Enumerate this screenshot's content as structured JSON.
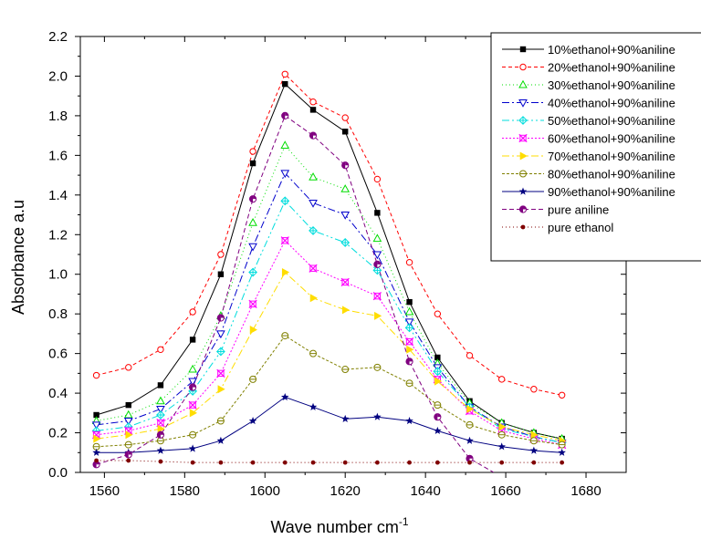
{
  "chart_data": {
    "type": "line",
    "title": "",
    "xlabel": "Wave number cm",
    "xlabel_sup": "-1",
    "ylabel": "Absorbance a.u",
    "xlim": [
      1554,
      1690
    ],
    "ylim": [
      0,
      2.2
    ],
    "xticks": [
      1560,
      1580,
      1600,
      1620,
      1640,
      1660,
      1680
    ],
    "xtick_labels": [
      "1560",
      "1580",
      "1600",
      "1620",
      "1640",
      "1660",
      "1680"
    ],
    "yticks": [
      0,
      0.2,
      0.4,
      0.6,
      0.8,
      1.0,
      1.2,
      1.4,
      1.6,
      1.8,
      2.0,
      2.2
    ],
    "ytick_labels": [
      "0.0",
      "0.2",
      "0.4",
      "0.6",
      "0.8",
      "1.0",
      "1.2",
      "1.4",
      "1.6",
      "1.8",
      "2.0",
      "2.2"
    ],
    "grid": false,
    "legend_position": "top-right",
    "x": [
      1558,
      1566,
      1574,
      1582,
      1589,
      1597,
      1605,
      1612,
      1620,
      1628,
      1636,
      1643,
      1651,
      1659,
      1667,
      1674
    ],
    "series": [
      {
        "name": "10%ethanol+90%aniline",
        "color": "#000000",
        "dash": "none",
        "marker": "square-filled",
        "values": [
          0.29,
          0.34,
          0.44,
          0.67,
          1.0,
          1.56,
          1.96,
          1.83,
          1.72,
          1.31,
          0.86,
          0.58,
          0.36,
          0.25,
          0.2,
          0.17
        ]
      },
      {
        "name": "20%ethanol+90%aniline",
        "color": "#ff0000",
        "dash": "4,3",
        "marker": "circle-open",
        "values": [
          0.49,
          0.53,
          0.62,
          0.81,
          1.1,
          1.62,
          2.01,
          1.87,
          1.79,
          1.48,
          1.06,
          0.8,
          0.59,
          0.47,
          0.42,
          0.39
        ]
      },
      {
        "name": "30%ethanol+90%aniline",
        "color": "#00dd00",
        "dash": "1,3",
        "marker": "triangle-up-open",
        "values": [
          0.26,
          0.29,
          0.36,
          0.52,
          0.79,
          1.26,
          1.65,
          1.49,
          1.43,
          1.18,
          0.81,
          0.55,
          0.35,
          0.25,
          0.2,
          0.17
        ]
      },
      {
        "name": "40%ethanol+90%aniline",
        "color": "#0000cc",
        "dash": "8,3,2,3",
        "marker": "triangle-down-open",
        "values": [
          0.24,
          0.26,
          0.32,
          0.46,
          0.7,
          1.14,
          1.51,
          1.36,
          1.3,
          1.1,
          0.76,
          0.53,
          0.33,
          0.23,
          0.18,
          0.15
        ]
      },
      {
        "name": "50%ethanol+90%aniline",
        "color": "#00dddd",
        "dash": "8,3,2,3,2,3",
        "marker": "diamond-cross",
        "values": [
          0.21,
          0.23,
          0.29,
          0.41,
          0.61,
          1.01,
          1.37,
          1.22,
          1.16,
          1.02,
          0.73,
          0.51,
          0.33,
          0.22,
          0.18,
          0.15
        ]
      },
      {
        "name": "60%ethanol+90%aniline",
        "color": "#ff00ff",
        "dash": "2,2",
        "marker": "x-box",
        "values": [
          0.19,
          0.21,
          0.25,
          0.34,
          0.5,
          0.85,
          1.17,
          1.03,
          0.96,
          0.89,
          0.66,
          0.47,
          0.31,
          0.21,
          0.17,
          0.14
        ]
      },
      {
        "name": "70%ethanol+90%aniline",
        "color": "#ffdd00",
        "dash": "8,3,2,3",
        "marker": "triangle-right",
        "values": [
          0.17,
          0.19,
          0.22,
          0.3,
          0.42,
          0.72,
          1.01,
          0.88,
          0.82,
          0.79,
          0.62,
          0.46,
          0.32,
          0.23,
          0.19,
          0.16
        ]
      },
      {
        "name": "80%ethanol+90%aniline",
        "color": "#808000",
        "dash": "3,2",
        "marker": "circle-line",
        "values": [
          0.13,
          0.14,
          0.16,
          0.19,
          0.26,
          0.47,
          0.69,
          0.6,
          0.52,
          0.53,
          0.45,
          0.34,
          0.24,
          0.19,
          0.16,
          0.14
        ]
      },
      {
        "name": "90%ethanol+90%aniline",
        "color": "#000080",
        "dash": "none",
        "marker": "star",
        "values": [
          0.1,
          0.1,
          0.11,
          0.12,
          0.16,
          0.26,
          0.38,
          0.33,
          0.27,
          0.28,
          0.26,
          0.21,
          0.16,
          0.13,
          0.11,
          0.1
        ]
      },
      {
        "name": "pure aniline",
        "color": "#800080",
        "dash": "5,3",
        "marker": "half-circle",
        "values": [
          0.04,
          0.09,
          0.19,
          0.43,
          0.78,
          1.38,
          1.8,
          1.7,
          1.55,
          1.05,
          0.56,
          0.28,
          0.07,
          null,
          null,
          null
        ],
        "trend_to": [
          1657,
          0.0
        ]
      },
      {
        "name": "pure ethanol",
        "color": "#800000",
        "dash": "1,3",
        "marker": "circle-filled",
        "values": [
          0.06,
          0.06,
          0.055,
          0.05,
          0.05,
          0.05,
          0.05,
          0.05,
          0.05,
          0.05,
          0.05,
          0.05,
          0.05,
          0.05,
          0.05,
          0.05
        ]
      }
    ]
  }
}
